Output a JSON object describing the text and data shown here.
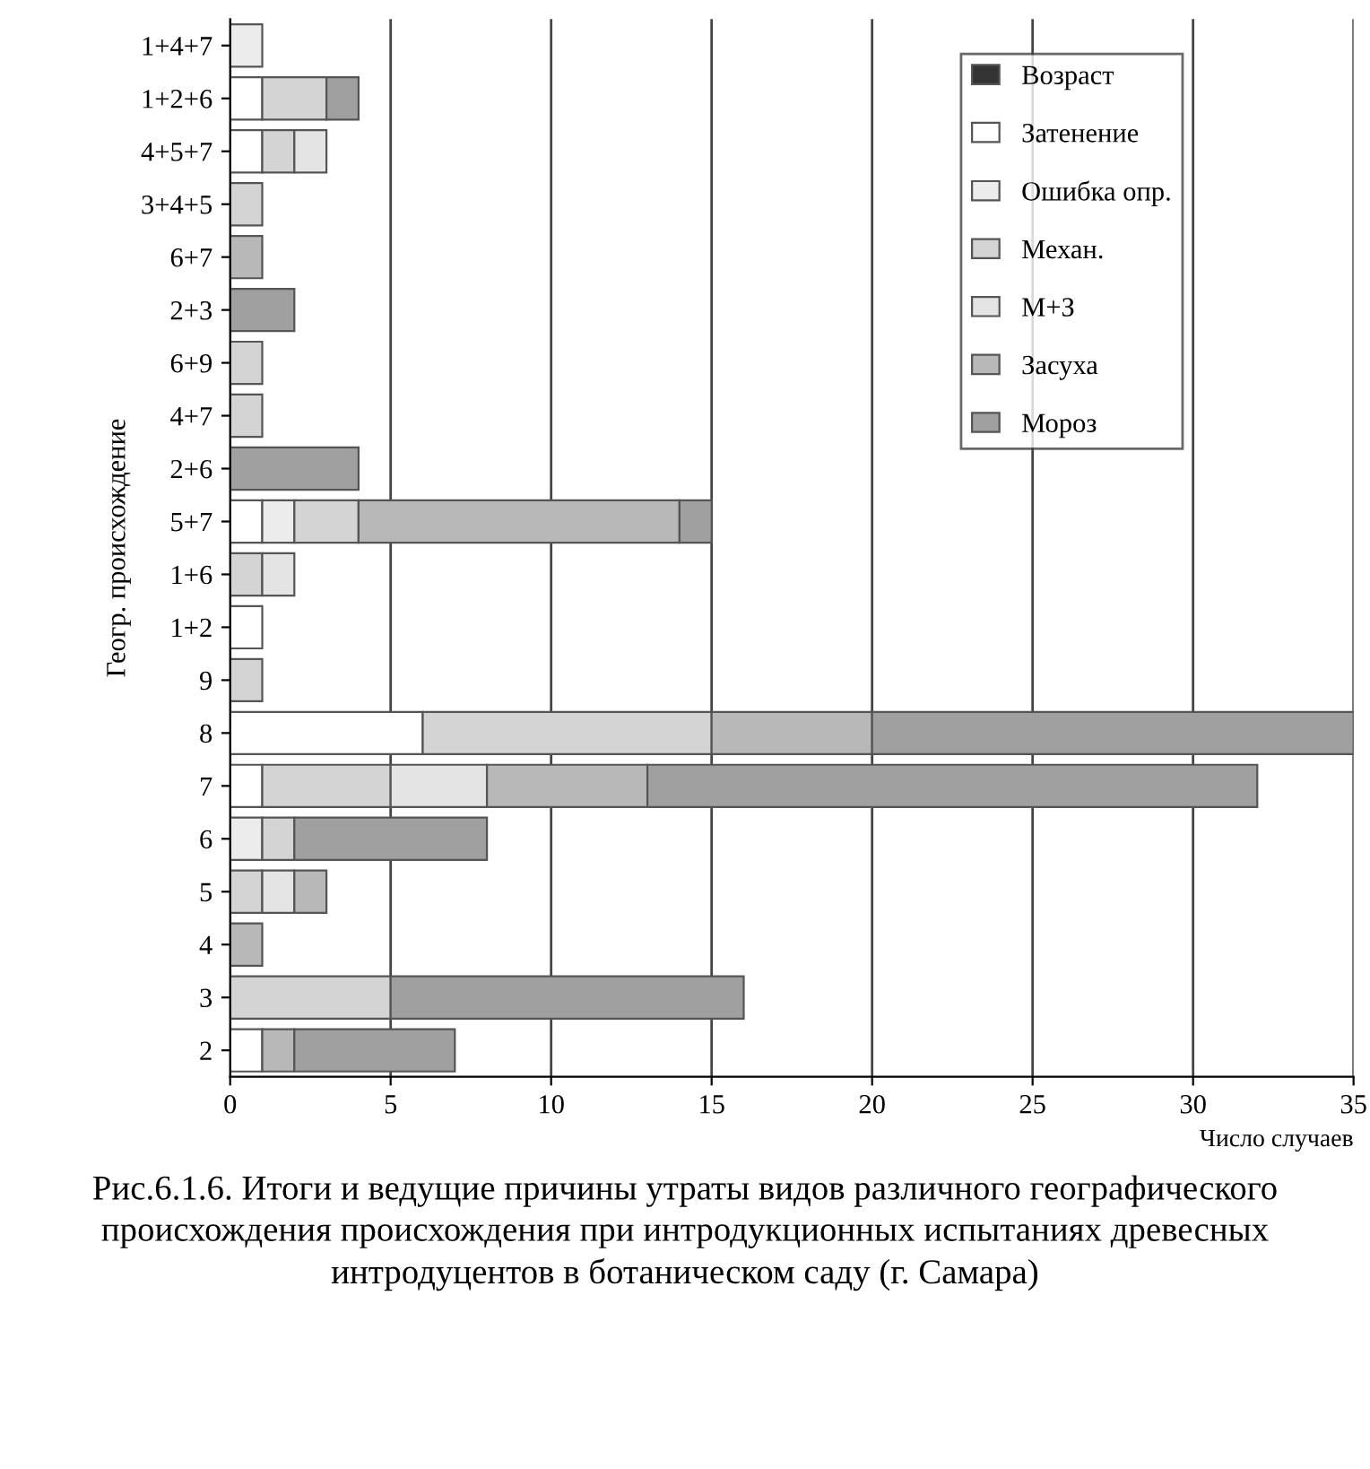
{
  "chart_data": {
    "type": "bar",
    "orientation": "horizontal",
    "stacked": true,
    "title": "Рис.6.1.6. Итоги и ведущие причины утраты видов различного географического происхождения происхождения при интродукционных испытаниях древесных интродуцентов в ботаническом саду (г. Самара)",
    "xlabel": "Число случаев",
    "ylabel": "Геогр. происхождение",
    "categories": [
      "1+4+7",
      "1+2+6",
      "4+5+7",
      "3+4+5",
      "6+7",
      "2+3",
      "6+9",
      "4+7",
      "2+6",
      "5+7",
      "1+6",
      "1+2",
      "9",
      "8",
      "7",
      "6",
      "5",
      "4",
      "3",
      "2"
    ],
    "series": [
      {
        "name": "Возраст",
        "color": "#333333",
        "values": [
          null,
          null,
          null,
          null,
          null,
          null,
          null,
          null,
          null,
          null,
          null,
          null,
          null,
          null,
          null,
          null,
          null,
          null,
          null,
          null
        ]
      },
      {
        "name": "Затенение",
        "color": "#ffffff",
        "values": [
          0,
          1,
          1,
          0,
          0,
          0,
          0,
          0,
          0,
          1,
          0,
          1,
          0,
          6,
          1,
          0,
          0,
          0,
          0,
          1
        ]
      },
      {
        "name": "Ошибка опр.",
        "color": "#ececec",
        "values": [
          1,
          0,
          0,
          0,
          0,
          0,
          0,
          0,
          0,
          1,
          0,
          0,
          0,
          0,
          0,
          1,
          0,
          0,
          0,
          0
        ]
      },
      {
        "name": "Механ.",
        "color": "#d4d4d4",
        "values": [
          0,
          2,
          1,
          1,
          0,
          0,
          1,
          1,
          0,
          2,
          1,
          0,
          1,
          9,
          4,
          1,
          1,
          0,
          5,
          0
        ]
      },
      {
        "name": "М+З",
        "color": "#e4e4e4",
        "values": [
          0,
          0,
          1,
          0,
          0,
          0,
          0,
          0,
          0,
          0,
          1,
          0,
          0,
          0,
          3,
          0,
          1,
          0,
          0,
          0
        ]
      },
      {
        "name": "Засуха",
        "color": "#b8b8b8",
        "values": [
          0,
          0,
          0,
          0,
          1,
          0,
          0,
          0,
          0,
          10,
          0,
          0,
          0,
          5,
          5,
          0,
          1,
          1,
          0,
          1
        ]
      },
      {
        "name": "Мороз",
        "color": "#a0a0a0",
        "values": [
          0,
          1,
          0,
          0,
          0,
          2,
          0,
          0,
          4,
          1,
          0,
          0,
          0,
          15,
          19,
          6,
          0,
          0,
          11,
          5
        ]
      }
    ],
    "xlim": [
      0,
      35
    ],
    "xticks": [
      0,
      5,
      10,
      15,
      20,
      25,
      30,
      35
    ],
    "grid": "x",
    "legend": "top right"
  }
}
